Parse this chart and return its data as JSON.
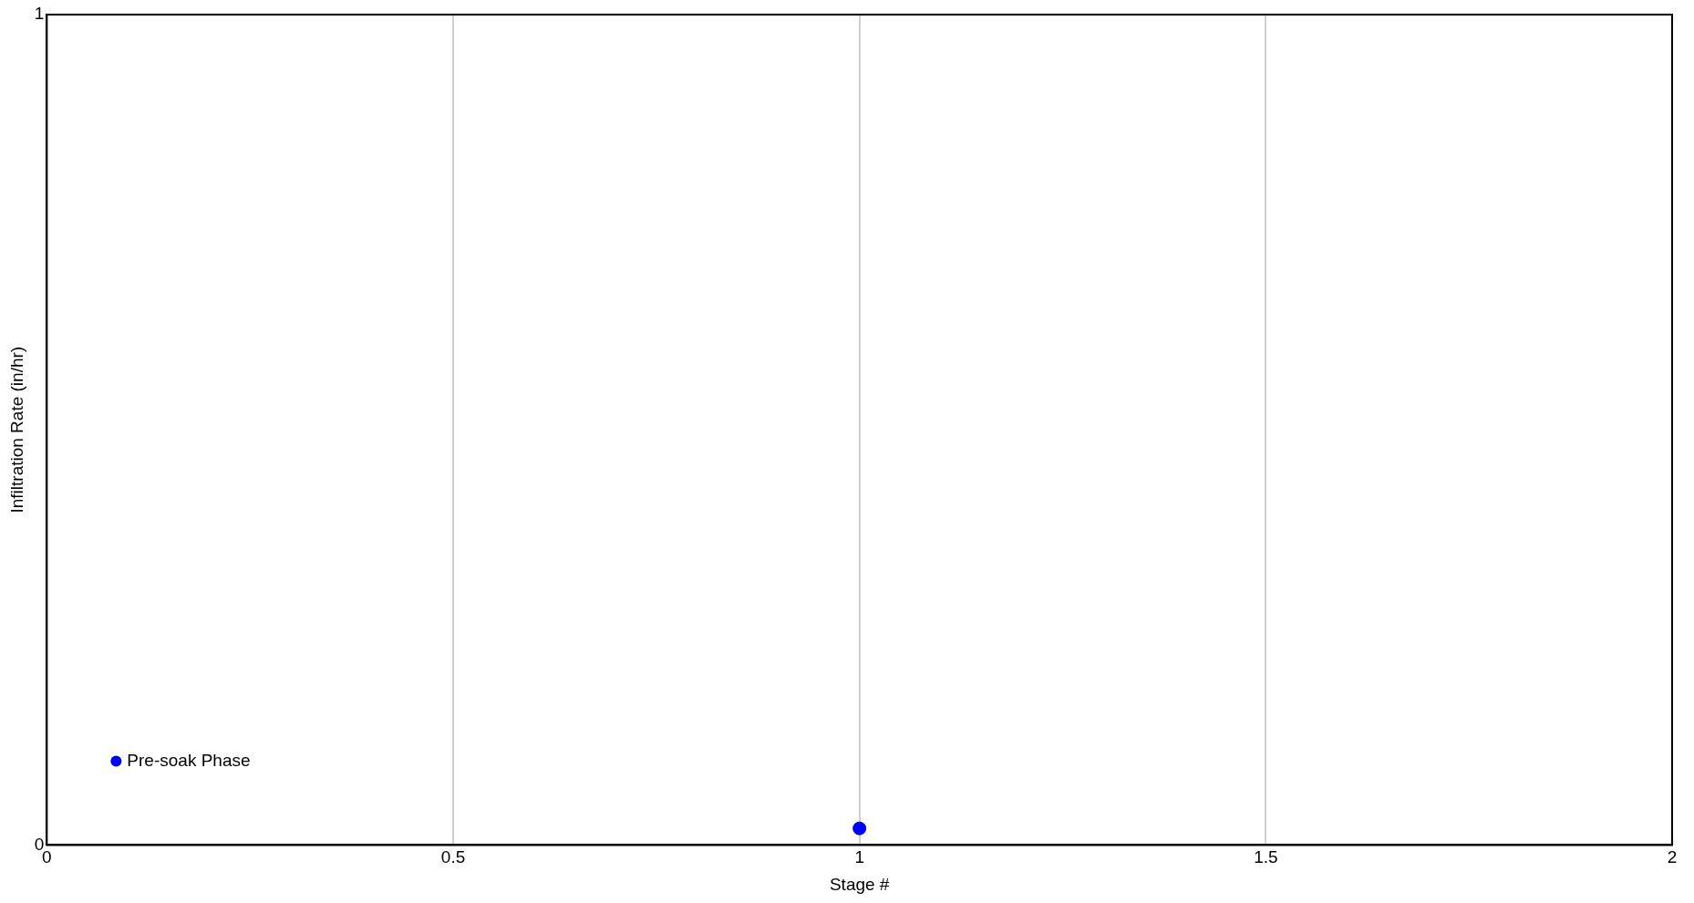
{
  "chart_data": {
    "type": "scatter",
    "xlabel": "Stage #",
    "ylabel": "Infiltration Rate (in/hr)",
    "series": [
      {
        "name": "Pre-soak Phase",
        "color": "#0000ff",
        "x": [
          1
        ],
        "values": [
          0.02
        ]
      }
    ],
    "xlim": [
      0,
      2
    ],
    "xticks": [
      0,
      0.5,
      1,
      1.5,
      2
    ],
    "ylim": [
      0,
      1
    ],
    "yticks": [
      0,
      1
    ],
    "grid": "x",
    "legend": "bottom left",
    "marker": "circle"
  }
}
